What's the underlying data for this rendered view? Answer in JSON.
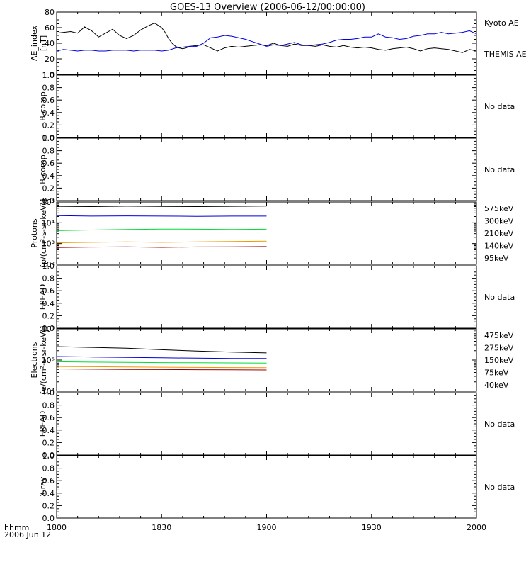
{
  "title": "GOES-13 Overview (2006-06-12/00:00:00)",
  "time_axis": {
    "ticks": [
      "1800",
      "1830",
      "1900",
      "1930",
      "2000"
    ],
    "corner_label_1": "hhmm",
    "corner_label_2": "2006 Jun 12"
  },
  "colors": {
    "black": "#000000",
    "blue": "#0000dd",
    "green": "#00dd33",
    "orange": "#ee9900",
    "darkred": "#990000"
  },
  "chart_data": [
    {
      "type": "line",
      "ylabel": [
        "AE_index",
        "[nT]"
      ],
      "ylim": [
        0,
        80
      ],
      "yticks": [
        "0",
        "20",
        "40",
        "60",
        "80"
      ],
      "ytick_values": [
        0,
        20,
        40,
        60,
        80
      ],
      "x_range_minutes": [
        0,
        120
      ],
      "legend": [
        "Kyoto AE",
        "THEMIS AE"
      ],
      "series": [
        {
          "name": "Kyoto AE",
          "color": "#000000",
          "x": [
            0,
            2,
            4,
            6,
            8,
            10,
            12,
            14,
            16,
            18,
            20,
            22,
            24,
            26,
            28,
            30,
            31,
            32,
            33,
            34,
            35,
            36,
            37,
            38,
            40,
            42,
            44,
            46,
            48,
            50,
            52,
            54,
            56,
            58,
            60,
            62,
            64,
            66,
            68,
            70,
            72,
            74,
            76,
            78,
            80,
            82,
            84,
            86,
            88,
            90,
            92,
            94,
            96,
            98,
            100,
            102,
            104,
            106,
            108,
            110,
            112,
            114,
            116,
            118,
            120
          ],
          "y": [
            53,
            54,
            55,
            53,
            61,
            56,
            48,
            53,
            58,
            50,
            46,
            50,
            57,
            62,
            66,
            60,
            54,
            46,
            40,
            36,
            34,
            33,
            34,
            36,
            37,
            38,
            34,
            30,
            34,
            36,
            35,
            36,
            37,
            38,
            37,
            40,
            37,
            36,
            39,
            37,
            37,
            36,
            38,
            36,
            35,
            37,
            35,
            34,
            35,
            34,
            32,
            31,
            33,
            34,
            35,
            33,
            30,
            33,
            34,
            33,
            32,
            30,
            28,
            32,
            30
          ]
        },
        {
          "name": "THEMIS AE",
          "color": "#0000dd",
          "x": [
            0,
            2,
            4,
            6,
            8,
            10,
            12,
            14,
            16,
            18,
            20,
            22,
            24,
            26,
            28,
            30,
            32,
            34,
            36,
            38,
            40,
            42,
            44,
            46,
            48,
            50,
            52,
            54,
            56,
            58,
            60,
            62,
            64,
            66,
            68,
            70,
            72,
            74,
            76,
            78,
            80,
            82,
            84,
            86,
            88,
            90,
            92,
            94,
            96,
            98,
            100,
            102,
            104,
            106,
            108,
            110,
            112,
            114,
            116,
            118,
            120
          ],
          "y": [
            30,
            32,
            31,
            30,
            31,
            31,
            30,
            30,
            31,
            31,
            31,
            30,
            31,
            31,
            31,
            30,
            31,
            34,
            35,
            36,
            36,
            40,
            47,
            48,
            50,
            49,
            47,
            45,
            42,
            39,
            36,
            38,
            37,
            39,
            41,
            38,
            37,
            38,
            39,
            41,
            44,
            45,
            45,
            46,
            48,
            48,
            52,
            48,
            47,
            45,
            46,
            49,
            50,
            52,
            52,
            54,
            52,
            53,
            54,
            56,
            52
          ]
        }
      ]
    },
    {
      "type": "line",
      "ylabel": [
        "B comp"
      ],
      "ylim": [
        0,
        1
      ],
      "yticks": [
        "0.0",
        "0.2",
        "0.4",
        "0.6",
        "0.8",
        "1.0"
      ],
      "ytick_values": [
        0,
        0.2,
        0.4,
        0.6,
        0.8,
        1.0
      ],
      "note": "No data",
      "series": []
    },
    {
      "type": "line",
      "ylabel": [
        "B comp"
      ],
      "ylim": [
        0,
        1
      ],
      "yticks": [
        "0.0",
        "0.2",
        "0.4",
        "0.6",
        "0.8",
        "1.0"
      ],
      "ytick_values": [
        0,
        0.2,
        0.4,
        0.6,
        0.8,
        1.0
      ],
      "note": "No data",
      "series": []
    },
    {
      "type": "line",
      "ylabel": [
        "Protons",
        "[p/(cm²-s-sr-keV)]"
      ],
      "scale": "log",
      "ylim": [
        100,
        100000
      ],
      "yticks": [
        "10²",
        "10³",
        "10⁴",
        "10⁵"
      ],
      "ytick_values": [
        100,
        1000,
        10000,
        100000
      ],
      "x_range_minutes": [
        0,
        120
      ],
      "legend": [
        "575keV",
        "300keV",
        "210keV",
        "140keV",
        "95keV"
      ],
      "series": [
        {
          "name": "95keV",
          "color": "#000000",
          "x": [
            0,
            10,
            20,
            30,
            40,
            50,
            60
          ],
          "y": [
            62000,
            60000,
            63000,
            61000,
            60000,
            62000,
            64000
          ]
        },
        {
          "name": "140keV",
          "color": "#0000dd",
          "x": [
            0,
            10,
            20,
            30,
            40,
            50,
            60
          ],
          "y": [
            22000,
            21000,
            21500,
            21000,
            20500,
            21000,
            21000
          ]
        },
        {
          "name": "210keV",
          "color": "#00dd33",
          "x": [
            0,
            10,
            20,
            30,
            40,
            50,
            60
          ],
          "y": [
            4200,
            4500,
            4800,
            5000,
            4900,
            4800,
            4900
          ]
        },
        {
          "name": "300keV",
          "color": "#ee9900",
          "x": [
            0,
            10,
            20,
            30,
            40,
            50,
            60
          ],
          "y": [
            1100,
            1150,
            1200,
            1150,
            1200,
            1250,
            1300
          ]
        },
        {
          "name": "575keV",
          "color": "#990000",
          "x": [
            0,
            10,
            20,
            30,
            40,
            50,
            60
          ],
          "y": [
            650,
            680,
            700,
            660,
            690,
            700,
            720
          ]
        }
      ]
    },
    {
      "type": "line",
      "ylabel": [
        "EPEAD"
      ],
      "ylim": [
        0,
        1
      ],
      "yticks": [
        "0.0",
        "0.2",
        "0.4",
        "0.6",
        "0.8",
        "1.0"
      ],
      "ytick_values": [
        0,
        0.2,
        0.4,
        0.6,
        0.8,
        1.0
      ],
      "note": "No data",
      "series": []
    },
    {
      "type": "line",
      "ylabel": [
        "Electrons",
        "[e/(cm²-s-sr-keV)]"
      ],
      "scale": "log",
      "ylim": [
        10000,
        1000000
      ],
      "yticks": [
        "10⁴",
        "10⁵",
        "10⁶"
      ],
      "ytick_values": [
        10000,
        100000,
        1000000
      ],
      "x_range_minutes": [
        0,
        120
      ],
      "legend": [
        "475keV",
        "275keV",
        "150keV",
        "75keV",
        "40keV"
      ],
      "series": [
        {
          "name": "40keV",
          "color": "#000000",
          "x": [
            0,
            10,
            20,
            30,
            40,
            50,
            60
          ],
          "y": [
            270000,
            255000,
            240000,
            215000,
            195000,
            180000,
            170000
          ]
        },
        {
          "name": "75keV",
          "color": "#0000dd",
          "x": [
            0,
            10,
            20,
            30,
            40,
            50,
            60
          ],
          "y": [
            130000,
            125000,
            122000,
            118000,
            115000,
            113000,
            112000
          ]
        },
        {
          "name": "150keV",
          "color": "#00dd33",
          "x": [
            0,
            10,
            20,
            30,
            40,
            50,
            60
          ],
          "y": [
            88000,
            86000,
            84000,
            83000,
            82000,
            81000,
            80000
          ]
        },
        {
          "name": "275keV",
          "color": "#ee9900",
          "x": [
            0,
            10,
            20,
            30,
            40,
            50,
            60
          ],
          "y": [
            62000,
            61000,
            60000,
            59000,
            58000,
            57500,
            57000
          ]
        },
        {
          "name": "475keV",
          "color": "#990000",
          "x": [
            0,
            10,
            20,
            30,
            40,
            50,
            60
          ],
          "y": [
            52000,
            51000,
            50000,
            49500,
            49000,
            48500,
            48000
          ]
        }
      ]
    },
    {
      "type": "line",
      "ylabel": [
        "EPEAD"
      ],
      "ylim": [
        0,
        1
      ],
      "yticks": [
        "0.0",
        "0.2",
        "0.4",
        "0.6",
        "0.8",
        "1.0"
      ],
      "ytick_values": [
        0,
        0.2,
        0.4,
        0.6,
        0.8,
        1.0
      ],
      "note": "No data",
      "series": []
    },
    {
      "type": "line",
      "ylabel": [
        "X-ray"
      ],
      "ylim": [
        0,
        1
      ],
      "yticks": [
        "0.0",
        "0.2",
        "0.4",
        "0.6",
        "0.8",
        "1.0"
      ],
      "ytick_values": [
        0,
        0.2,
        0.4,
        0.6,
        0.8,
        1.0
      ],
      "note": "No data",
      "series": []
    }
  ]
}
